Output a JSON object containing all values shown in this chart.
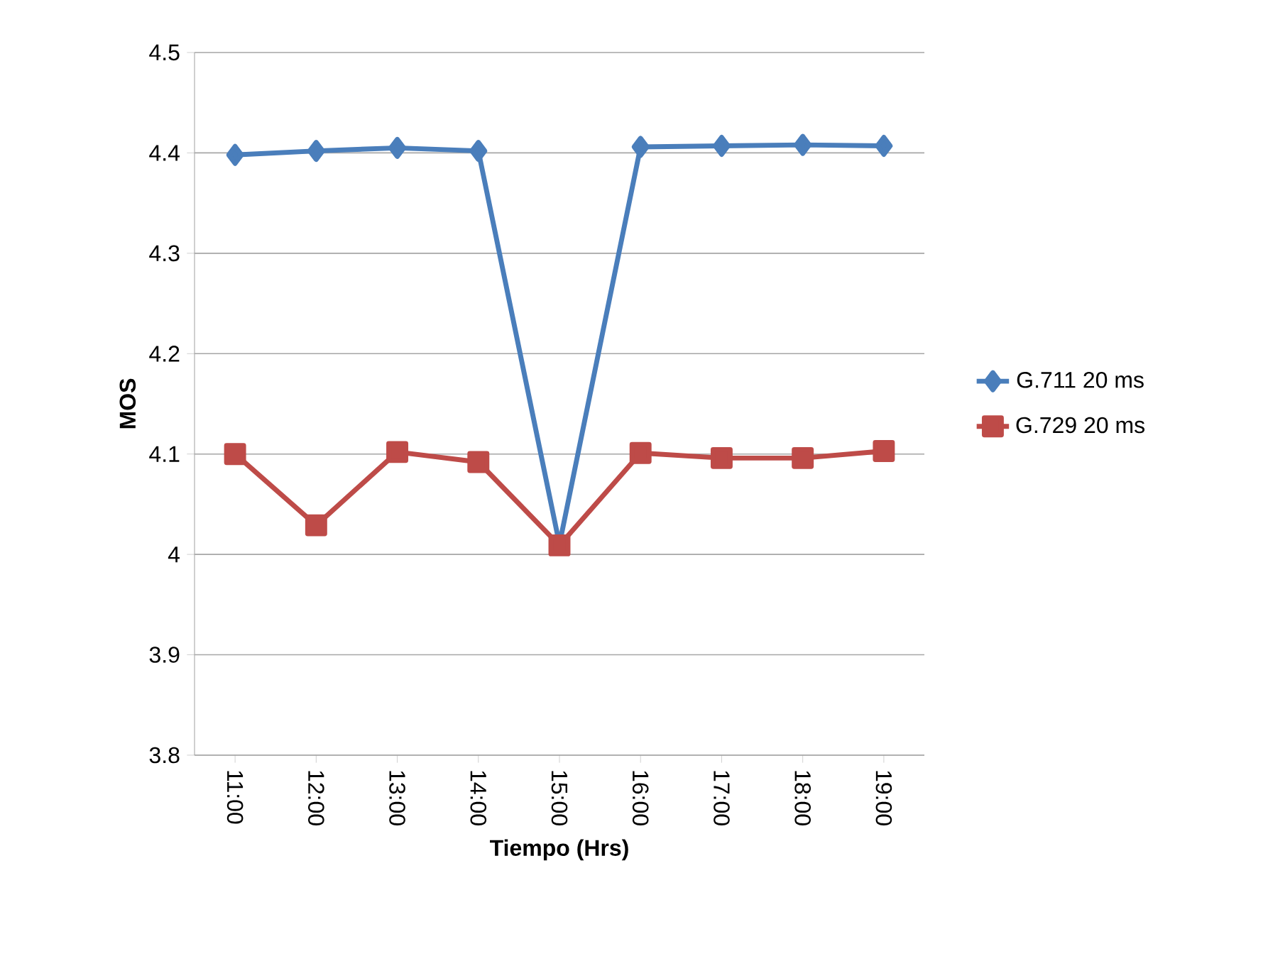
{
  "chart_data": {
    "type": "line",
    "xlabel": "Tiempo (Hrs)",
    "ylabel": "MOS",
    "categories": [
      "11:00",
      "12:00",
      "13:00",
      "14:00",
      "15:00",
      "16:00",
      "17:00",
      "18:00",
      "19:00"
    ],
    "series": [
      {
        "name": "G.711 20 ms",
        "color": "#4a7ebb",
        "marker": "diamond",
        "values": [
          4.398,
          4.402,
          4.405,
          4.402,
          4.01,
          4.406,
          4.407,
          4.408,
          4.407
        ]
      },
      {
        "name": "G.729 20 ms",
        "color": "#be4b48",
        "marker": "square",
        "values": [
          4.1,
          4.029,
          4.102,
          4.092,
          4.009,
          4.101,
          4.096,
          4.096,
          4.103
        ]
      }
    ],
    "ylim": [
      3.8,
      4.5
    ],
    "yticks": [
      3.8,
      3.9,
      4,
      4.1,
      4.2,
      4.3,
      4.4,
      4.5
    ],
    "grid": "y",
    "legend": "right",
    "line_style": "solid"
  }
}
